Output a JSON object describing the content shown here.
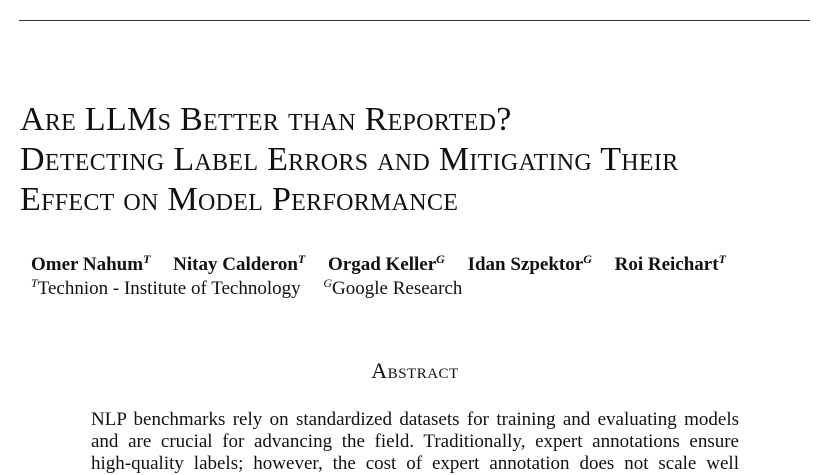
{
  "paper": {
    "title_lines": [
      "Are LLMs Better than Reported?",
      "Detecting Label Errors and Mitigating Their",
      "Effect on Model Performance"
    ],
    "authors": [
      {
        "name": "Omer Nahum",
        "mark": "T"
      },
      {
        "name": "Nitay Calderon",
        "mark": "T"
      },
      {
        "name": "Orgad Keller",
        "mark": "G"
      },
      {
        "name": "Idan Szpektor",
        "mark": "G"
      },
      {
        "name": "Roi Reichart",
        "mark": "T"
      }
    ],
    "affiliations": [
      {
        "mark": "T",
        "name": "Technion - Institute of Technology"
      },
      {
        "mark": "G",
        "name": "Google Research"
      }
    ],
    "abstract_heading": "Abstract",
    "abstract_lines": [
      "NLP benchmarks rely on standardized datasets for training and evaluating models",
      "and are crucial for advancing the field.  Traditionally, expert annotations ensure",
      "high-quality labels; however, the cost of expert annotation does not scale well"
    ]
  }
}
